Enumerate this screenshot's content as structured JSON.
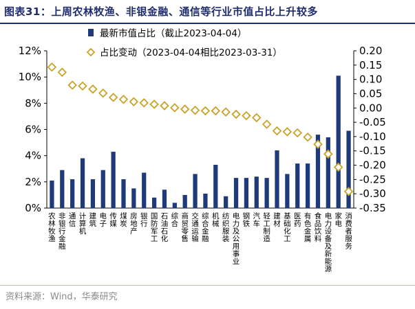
{
  "title": "图表31：上周农林牧渔、非银金融、通信等行业市值占比上升较多",
  "source": "资料来源：Wind，华泰研究",
  "colors": {
    "bar": "#1f3a7a",
    "marker": "#c9a227",
    "title": "#1f2d6e"
  },
  "chart_data": {
    "type": "bar",
    "categories": [
      "农林牧渔",
      "非银行金融",
      "通信",
      "计算机",
      "建筑",
      "电子",
      "传媒",
      "煤炭",
      "房地产",
      "银行",
      "国防军工",
      "石油石化",
      "综合",
      "商贸零售",
      "交通运输",
      "综合金融",
      "机械",
      "纺织服装",
      "电力及公用事业",
      "钢铁",
      "汽车",
      "轻工制造",
      "建材",
      "基础化工",
      "医药",
      "有色金属",
      "食品饮料",
      "电力设备及新能源",
      "家电",
      "消费者服务"
    ],
    "series": [
      {
        "name": "最新市值占比（截止2023-04-04）",
        "type": "bar",
        "axis": "left",
        "values": [
          2.1,
          2.9,
          2.2,
          3.8,
          2.2,
          2.9,
          4.3,
          2.2,
          1.5,
          2.7,
          0.8,
          1.4,
          0.4,
          1.0,
          2.6,
          1.1,
          3.3,
          0.9,
          2.3,
          2.3,
          2.4,
          2.3,
          4.4,
          2.6,
          3.4,
          3.4,
          5.6,
          5.4,
          10.1,
          5.9
        ]
      },
      {
        "name": "占比变动（2023-04-04相比2023-03-31）",
        "type": "scatter",
        "marker": "diamond",
        "axis": "right",
        "values": [
          0.143,
          0.125,
          0.08,
          0.077,
          0.066,
          0.052,
          0.037,
          0.03,
          0.022,
          0.018,
          0.013,
          0.008,
          0.001,
          -0.004,
          -0.008,
          -0.01,
          -0.01,
          -0.014,
          -0.022,
          -0.027,
          -0.034,
          -0.057,
          -0.08,
          -0.083,
          -0.087,
          -0.102,
          -0.127,
          -0.161,
          -0.207,
          -0.292
        ]
      }
    ],
    "y_left": {
      "ticks": [
        "0%",
        "2%",
        "4%",
        "6%",
        "8%",
        "10%",
        "12%"
      ],
      "min": 0,
      "max": 12
    },
    "y_right": {
      "ticks": [
        "0.20",
        "0.15",
        "0.10",
        "0.05",
        "0.00",
        "-0.05",
        "-0.10",
        "-0.15",
        "-0.20",
        "-0.25",
        "-0.30",
        "-0.35"
      ],
      "min": -0.35,
      "max": 0.2
    },
    "grid": false,
    "legend_position": "top-center"
  }
}
